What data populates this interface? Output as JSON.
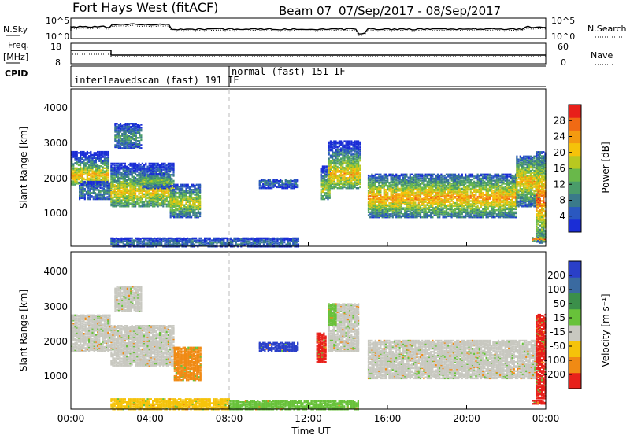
{
  "header": {
    "station": "Fort Hays West (fitACF)",
    "beam_label": "Beam 07",
    "date_range": "07/Sep/2017 - 08/Sep/2017"
  },
  "top_panel": {
    "left_label_1": "N.Sky",
    "left_label_2": "Freq.",
    "left_label_2_units": "[MHz]",
    "left_label_3": "CPID",
    "right_label_1": "N.Search",
    "right_label_2": "Nave",
    "noise_left_ticks": [
      "10^5",
      "10^0"
    ],
    "noise_right_ticks": [
      "10^5",
      "10^0"
    ],
    "freq_left_ticks": [
      "18",
      "8"
    ],
    "freq_right_ticks": [
      "60",
      "0"
    ],
    "cpid_segments": [
      {
        "label": "interleavedscan (fast) 191 IF",
        "start_hour": 0,
        "end_hour": 8
      },
      {
        "label": "normal (fast) 151 IF",
        "start_hour": 8,
        "end_hour": 24
      }
    ]
  },
  "chart_data": [
    {
      "type": "heatmap",
      "name": "power",
      "ylabel": "Slant Range [km]",
      "ylim": [
        180,
        4500
      ],
      "yticks": [
        "1000",
        "2000",
        "3000",
        "4000"
      ],
      "colorbar_label": "Power [dB]",
      "colorbar_ticks": [
        "4",
        "8",
        "12",
        "16",
        "20",
        "24",
        "28"
      ],
      "colorbar_colors": [
        "#1a2dd6",
        "#2a58c0",
        "#3a7a8a",
        "#4a9c6a",
        "#69b84a",
        "#b8c820",
        "#f5c30a",
        "#f49a10",
        "#f06a14",
        "#e8201a"
      ],
      "regions": [
        {
          "t0": 0.0,
          "t1": 1.9,
          "r0": 1900,
          "r1": 2800,
          "core": 2150,
          "level": 0.7
        },
        {
          "t0": 0.4,
          "t1": 2.0,
          "r0": 1500,
          "r1": 2000,
          "core": 1700,
          "level": 0.3
        },
        {
          "t0": 2.0,
          "t1": 5.2,
          "r0": 1300,
          "r1": 2500,
          "core": 1700,
          "level": 0.65
        },
        {
          "t0": 2.2,
          "t1": 3.6,
          "r0": 2900,
          "r1": 3600,
          "core": 3200,
          "level": 0.35
        },
        {
          "t0": 3.6,
          "t1": 5.0,
          "r0": 1800,
          "r1": 2200,
          "core": 2000,
          "level": 0.5
        },
        {
          "t0": 5.0,
          "t1": 6.5,
          "r0": 1000,
          "r1": 1900,
          "core": 1400,
          "level": 0.6
        },
        {
          "t0": 2.0,
          "t1": 11.5,
          "r0": 200,
          "r1": 450,
          "core": 300,
          "level": 0.25
        },
        {
          "t0": 9.5,
          "t1": 11.5,
          "r0": 1800,
          "r1": 2050,
          "core": 1950,
          "level": 0.25
        },
        {
          "t0": 12.6,
          "t1": 13.1,
          "r0": 1500,
          "r1": 2400,
          "core": 1800,
          "level": 0.6
        },
        {
          "t0": 13.0,
          "t1": 14.6,
          "r0": 1800,
          "r1": 3100,
          "core": 2200,
          "level": 0.7
        },
        {
          "t0": 15.0,
          "t1": 22.5,
          "r0": 1000,
          "r1": 2200,
          "core": 1550,
          "level": 0.75
        },
        {
          "t0": 22.5,
          "t1": 23.7,
          "r0": 1300,
          "r1": 2700,
          "core": 2000,
          "level": 0.7
        },
        {
          "t0": 23.5,
          "t1": 24.0,
          "r0": 300,
          "r1": 2800,
          "core": 1500,
          "level": 0.85
        },
        {
          "t0": 23.3,
          "t1": 24.0,
          "r0": 350,
          "r1": 460,
          "core": 400,
          "level": 0.9
        }
      ]
    },
    {
      "type": "heatmap",
      "name": "velocity",
      "ylabel": "Slant Range [km]",
      "ylim": [
        180,
        4500
      ],
      "yticks": [
        "1000",
        "2000",
        "3000",
        "4000"
      ],
      "colorbar_label": "Velocity [m s⁻¹]",
      "colorbar_ticks": [
        "200",
        "100",
        "50",
        "15",
        "-15",
        "-50",
        "-100",
        "-200"
      ],
      "colorbar_colors": [
        "#2a3fc8",
        "#3a6aa0",
        "#3b8f4a",
        "#68c23a",
        "#c8c8c0",
        "#f5c30a",
        "#f08a14",
        "#e8201a"
      ],
      "regions": [
        {
          "t0": 0.0,
          "t1": 2.0,
          "r0": 1800,
          "r1": 2800,
          "color": "#c8c8c0"
        },
        {
          "t0": 2.0,
          "t1": 5.2,
          "r0": 1400,
          "r1": 2500,
          "color": "#c8c8c0"
        },
        {
          "t0": 2.2,
          "t1": 3.6,
          "r0": 2900,
          "r1": 3600,
          "color": "#c8c8c0"
        },
        {
          "t0": 5.2,
          "t1": 6.6,
          "r0": 1000,
          "r1": 1900,
          "color": "#f08a14"
        },
        {
          "t0": 2.0,
          "t1": 8.0,
          "r0": 200,
          "r1": 500,
          "color": "#f5c30a"
        },
        {
          "t0": 8.0,
          "t1": 14.5,
          "r0": 200,
          "r1": 450,
          "color": "#68c23a"
        },
        {
          "t0": 9.5,
          "t1": 11.5,
          "r0": 1800,
          "r1": 2050,
          "color": "#2a3fc8"
        },
        {
          "t0": 12.4,
          "t1": 12.9,
          "r0": 1500,
          "r1": 2300,
          "color": "#e8201a"
        },
        {
          "t0": 13.0,
          "t1": 14.5,
          "r0": 1800,
          "r1": 3100,
          "color": "#c8c8c0"
        },
        {
          "t0": 13.0,
          "t1": 13.4,
          "r0": 2500,
          "r1": 3100,
          "color": "#68c23a"
        },
        {
          "t0": 15.0,
          "t1": 23.5,
          "r0": 1050,
          "r1": 2100,
          "color": "#c8c8c0"
        },
        {
          "t0": 23.5,
          "t1": 24.0,
          "r0": 500,
          "r1": 2800,
          "color": "#e8201a"
        },
        {
          "t0": 23.3,
          "t1": 24.0,
          "r0": 350,
          "r1": 460,
          "color": "#e8201a"
        }
      ]
    }
  ],
  "x_axis": {
    "xlabel": "Time UT",
    "xlim": [
      0,
      24
    ],
    "tick_labels": [
      "00:00",
      "04:00",
      "08:00",
      "12:00",
      "16:00",
      "20:00",
      "00:00"
    ]
  }
}
